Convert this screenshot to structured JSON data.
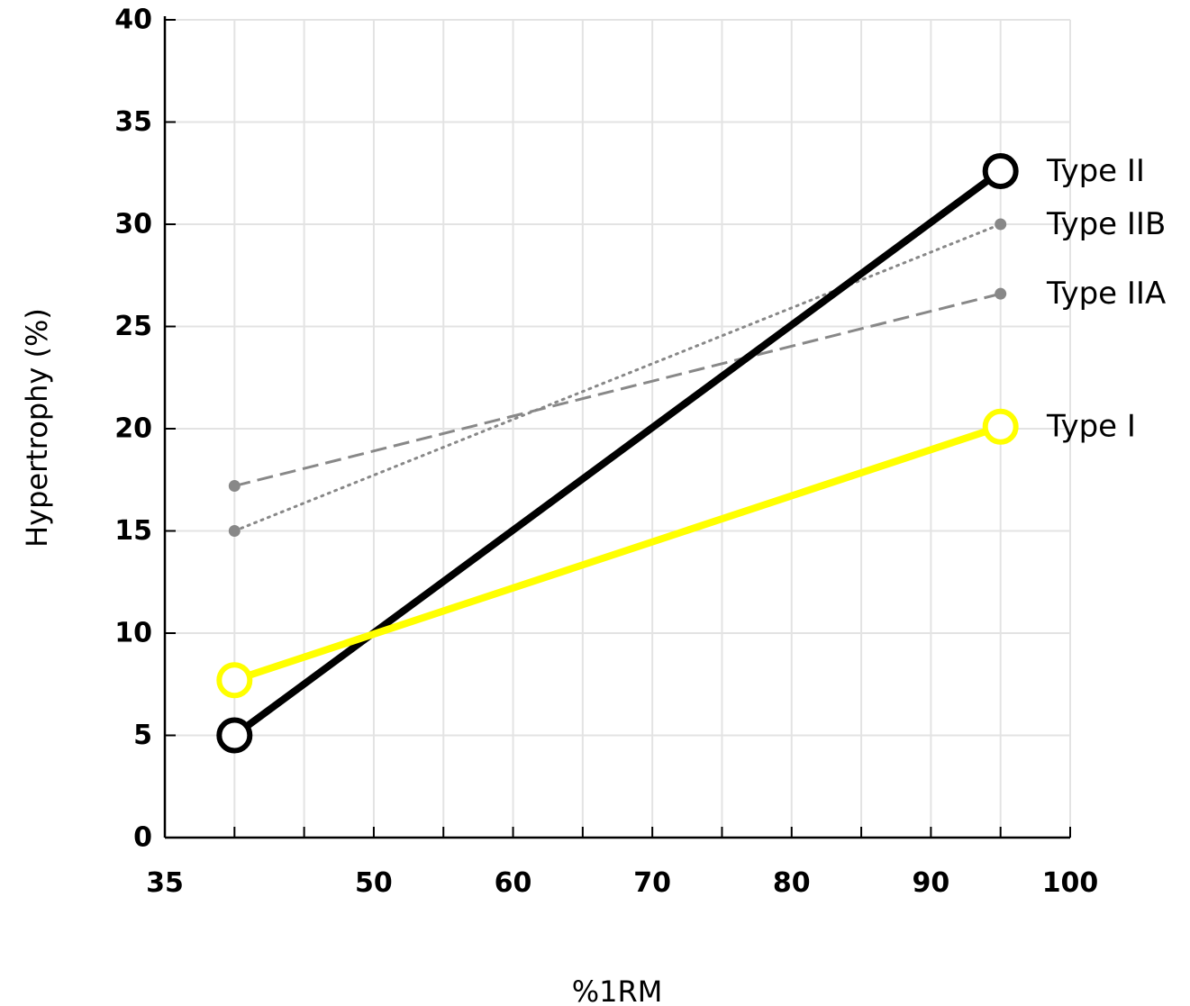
{
  "chart_data": {
    "type": "line",
    "xlabel": "%1RM",
    "ylabel": "Hypertrophy (%)",
    "xlim": [
      35,
      100
    ],
    "ylim": [
      0,
      40
    ],
    "x_ticks": [
      35,
      50,
      60,
      70,
      80,
      90,
      100
    ],
    "y_ticks": [
      0,
      5,
      10,
      15,
      20,
      25,
      30,
      35,
      40
    ],
    "grid": true,
    "legend": "direct labels at right end of each line",
    "series": [
      {
        "name": "Type II",
        "x": [
          40,
          95
        ],
        "y": [
          5.0,
          32.6
        ],
        "color": "#000000",
        "style": "solid-thick",
        "marker": "open-circle-large"
      },
      {
        "name": "Type IIB",
        "x": [
          40,
          95
        ],
        "y": [
          15.0,
          30.0
        ],
        "color": "#888888",
        "style": "dotted",
        "marker": "dot"
      },
      {
        "name": "Type IIA",
        "x": [
          40,
          95
        ],
        "y": [
          17.2,
          26.6
        ],
        "color": "#888888",
        "style": "dashed",
        "marker": "dot"
      },
      {
        "name": "Type I",
        "x": [
          40,
          95
        ],
        "y": [
          7.7,
          20.1
        ],
        "color": "#ffff00",
        "style": "solid-thick",
        "marker": "open-circle-large"
      }
    ]
  }
}
